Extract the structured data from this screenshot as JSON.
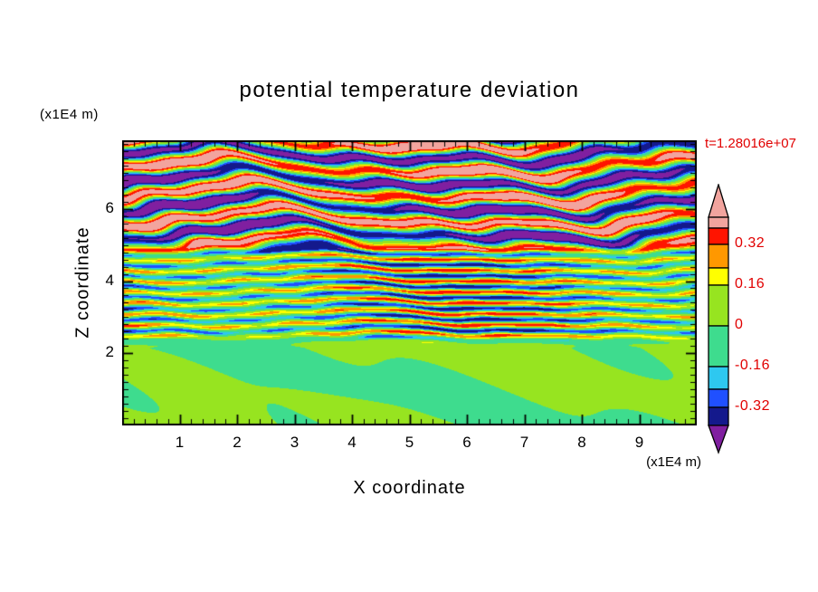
{
  "page": {
    "background": "#FFFFFF"
  },
  "chart_data": {
    "type": "heatmap",
    "title": "potential temperature deviation",
    "timestamp": "t=1.28016e+07",
    "xlabel": "X coordinate",
    "ylabel": "Z coordinate",
    "x_unit": "(x1E4 m)",
    "y_unit": "(x1E4 m)",
    "x_range": [
      0,
      10
    ],
    "y_range": [
      0,
      7.9
    ],
    "x_ticks": [
      1,
      2,
      3,
      4,
      5,
      6,
      7,
      8,
      9
    ],
    "y_ticks": [
      2,
      4,
      6
    ],
    "grid": false,
    "frame_color": "#000000",
    "label_color": "#E10000",
    "colorbar": {
      "position": "right",
      "labels": [
        "0.32",
        "0.16",
        "0",
        "-0.16",
        "-0.32"
      ],
      "levels": [
        0.32,
        0.16,
        0,
        -0.16,
        -0.32
      ],
      "colors_top_to_bottom": [
        "#F2A49E",
        "#FF1400",
        "#FF9800",
        "#FFFF00",
        "#97E420",
        "#3EDC8E",
        "#2EC8F0",
        "#2050FF",
        "#14198C",
        "#801FA0"
      ],
      "thresholds": [
        0.44,
        0.32,
        0.22,
        0.16,
        0,
        -0.16,
        -0.22,
        -0.32,
        -0.44
      ]
    },
    "field_zones": [
      {
        "z_range": [
          0,
          2
        ],
        "character": "smooth near-zero region, two green shades (deviation within about ±0.15)"
      },
      {
        "z_range": [
          2,
          5
        ],
        "character": "fine horizontal striations alternating yellow/green/cyan/blue with occasional red, about ±0.3"
      },
      {
        "z_range": [
          5,
          7.9
        ],
        "character": "broad wavy bands of pink/purple extremes (beyond ±0.4) with red/orange/blue fringes"
      }
    ]
  }
}
